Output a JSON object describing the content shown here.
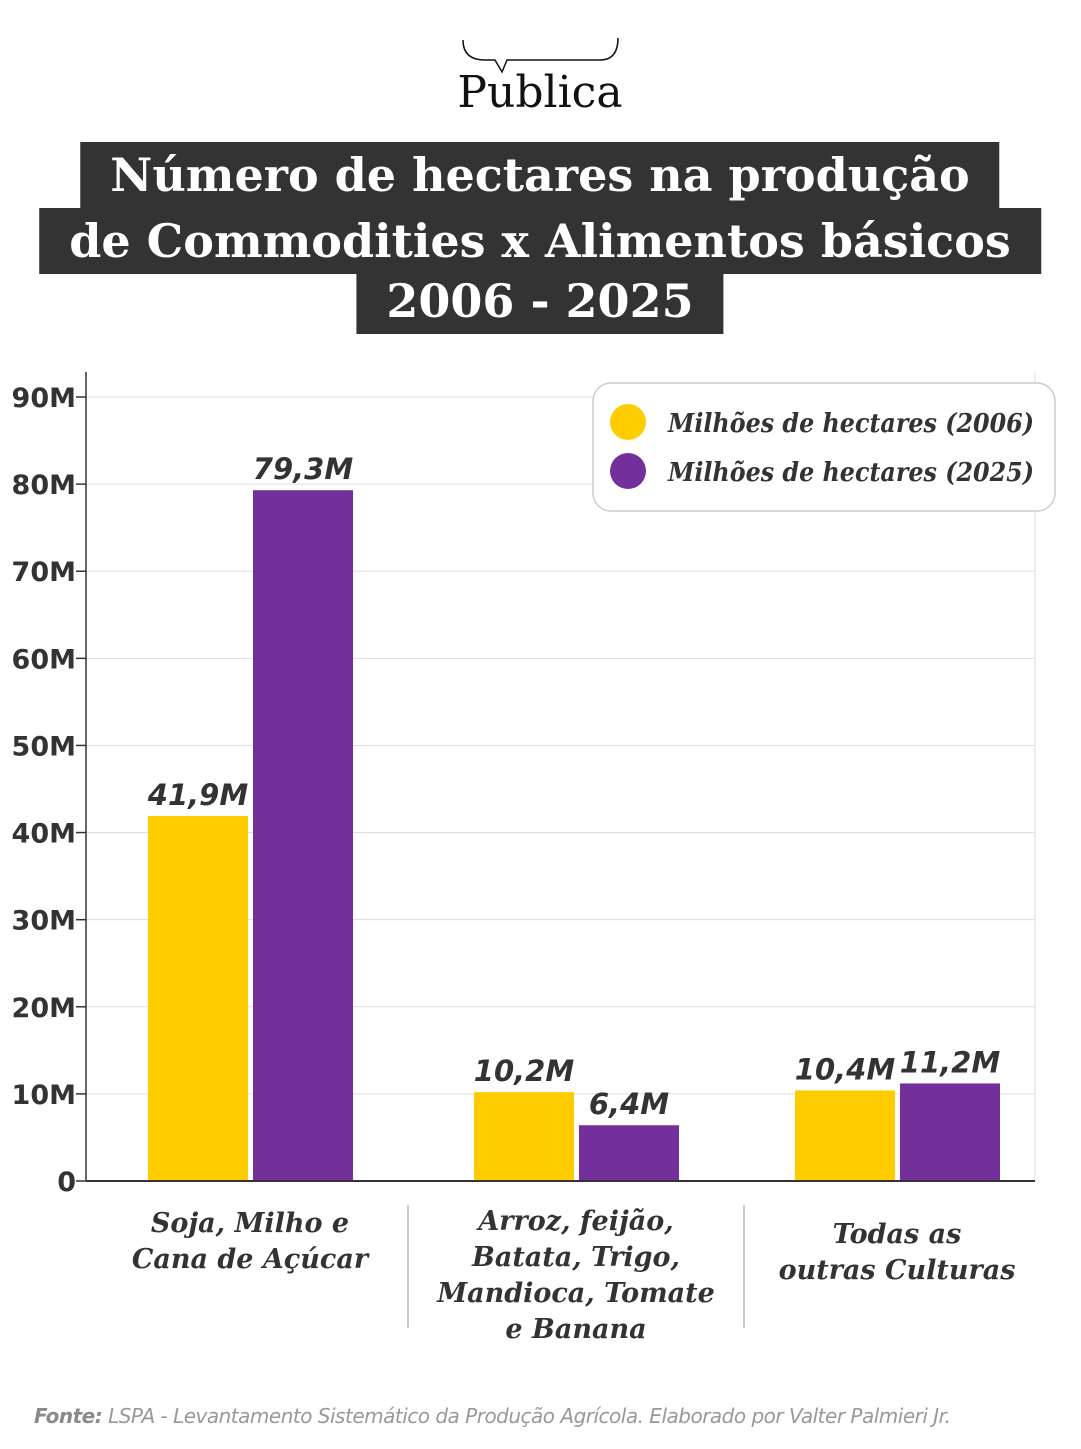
{
  "brand": {
    "logo_text": "Pública"
  },
  "chart_data": {
    "type": "bar",
    "title_lines": [
      "Número de hectares na produção",
      "de Commodities x Alimentos básicos",
      "2006 - 2025"
    ],
    "categories": [
      [
        "Soja, Milho e",
        "Cana de Açúcar"
      ],
      [
        "Arroz, feijão,",
        "Batata, Trigo,",
        "Mandioca, Tomate",
        "e Banana"
      ],
      [
        "Todas as",
        "outras Culturas"
      ]
    ],
    "series": [
      {
        "name": "Milhões de hectares (2006)",
        "color": "#FFCC00",
        "values": [
          41.9,
          10.2,
          10.4
        ],
        "labels": [
          "41,9M",
          "10,2M",
          "10,4M"
        ]
      },
      {
        "name": "Milhões de hectares (2025)",
        "color": "#732F9A",
        "values": [
          79.3,
          6.4,
          11.2
        ],
        "labels": [
          "79,3M",
          "6,4M",
          "11,2M"
        ]
      }
    ],
    "yticks": [
      0,
      10,
      20,
      30,
      40,
      50,
      60,
      70,
      80,
      90
    ],
    "ytick_labels": [
      "0",
      "10M",
      "20M",
      "30M",
      "40M",
      "50M",
      "60M",
      "70M",
      "80M",
      "90M"
    ],
    "ylim": [
      0,
      90
    ],
    "grid": true,
    "legend": "top-right"
  },
  "source": {
    "label": "Fonte:",
    "text": " LSPA - Levantamento Sistemático da Produção Agrícola. Elaborado por Valter Palmieri Jr."
  }
}
